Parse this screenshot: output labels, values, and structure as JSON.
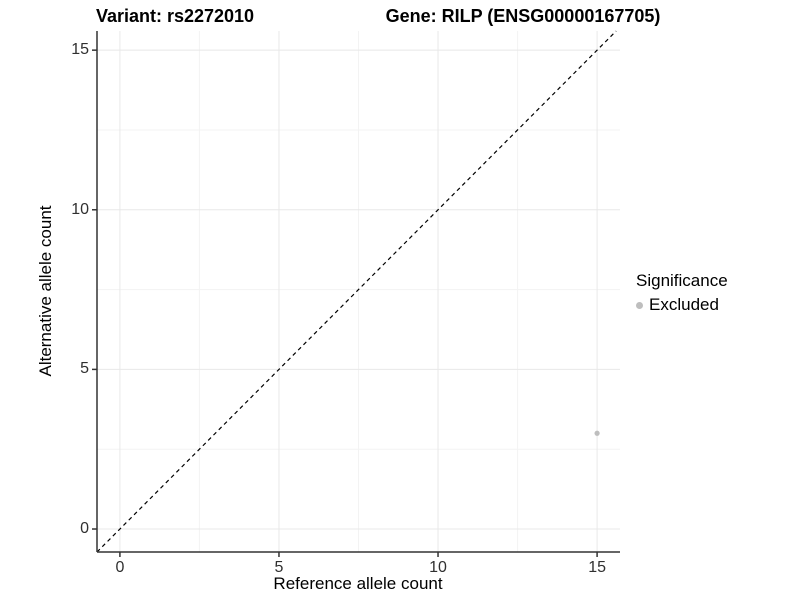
{
  "chart_data": {
    "type": "scatter",
    "title_left": "Variant: rs2272010",
    "title_right": "Gene: RILP (ENSG00000167705)",
    "xlabel": "Reference allele count",
    "ylabel": "Alternative allele count",
    "xlim": [
      -0.72,
      15.72
    ],
    "ylim": [
      -0.72,
      15.6
    ],
    "xticks": [
      0,
      5,
      10,
      15
    ],
    "yticks": [
      0,
      5,
      10,
      15
    ],
    "x_minor_breaks": [
      2.5,
      7.5,
      12.5
    ],
    "y_minor_breaks": [
      2.5,
      7.5,
      12.5
    ],
    "grid": true,
    "points": [
      {
        "x": 15,
        "y": 3,
        "series": "Excluded"
      }
    ],
    "reference_line": {
      "type": "identity",
      "slope": 1,
      "intercept": 0,
      "style": "dashed"
    },
    "legend": {
      "title": "Significance",
      "position": "right",
      "entries": [
        {
          "label": "Excluded",
          "color": "#bebebe"
        }
      ]
    },
    "colors": {
      "point": "#bebebe",
      "axis_line": "#333333",
      "tick_mark": "#333333",
      "grid_major": "#e8e8e8",
      "grid_minor": "#f3f3f3",
      "reference_line": "#000000",
      "background": "#ffffff"
    }
  }
}
